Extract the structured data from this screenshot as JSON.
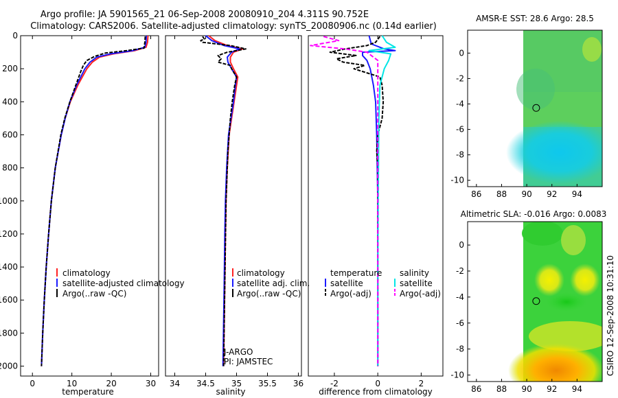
{
  "title": {
    "line1": "Argo profile: JA 5901565_21 06-Sep-2008 20080910_204 4.311S 90.752E",
    "line2": "Climatology: CARS2006. Satellite-adjusted climatology: synTS_20080906.nc (0.14d earlier)"
  },
  "credit": "CSIRO 12-Sep-2008 10:31:10",
  "colors": {
    "climatology": "#ff2020",
    "satellite": "#1a1aff",
    "argo": "#000000",
    "sal_satellite": "#00e5e5",
    "sal_argo": "#ff00ff"
  },
  "chart_data": [
    {
      "id": "temperature",
      "type": "line",
      "xlabel": "temperature",
      "ylabel": "",
      "xlim": [
        -3,
        32
      ],
      "ylim": [
        2060,
        0
      ],
      "xticks": [
        0,
        10,
        20,
        30
      ],
      "yticks": [
        0,
        200,
        400,
        600,
        800,
        1000,
        1200,
        1400,
        1600,
        1800,
        2000
      ],
      "legend": [
        "climatology",
        "satellite-adjusted climatology",
        "Argo(..raw -QC)"
      ],
      "series": [
        {
          "name": "climatology",
          "depth": [
            0,
            40,
            70,
            90,
            110,
            130,
            160,
            200,
            300,
            400,
            500,
            600,
            800,
            1000,
            1200,
            1400,
            1600,
            1800,
            2000
          ],
          "values": [
            29.3,
            29.2,
            28.8,
            26.0,
            20.5,
            17.0,
            15.2,
            13.8,
            11.5,
            9.6,
            8.3,
            7.3,
            5.8,
            4.8,
            4.1,
            3.5,
            3.0,
            2.6,
            2.3
          ]
        },
        {
          "name": "satellite-adjusted climatology",
          "depth": [
            0,
            40,
            70,
            90,
            110,
            130,
            160,
            200,
            300,
            400,
            500,
            600,
            800,
            1000,
            1200,
            1400,
            1600,
            1800,
            2000
          ],
          "values": [
            28.9,
            28.8,
            28.5,
            25.5,
            19.8,
            16.3,
            14.6,
            13.3,
            11.2,
            9.5,
            8.3,
            7.3,
            5.8,
            4.8,
            4.1,
            3.5,
            3.0,
            2.6,
            2.3
          ]
        },
        {
          "name": "Argo(..raw -QC)",
          "depth": [
            5,
            40,
            75,
            90,
            105,
            125,
            150,
            180,
            220,
            300,
            400,
            500,
            600,
            800,
            1000,
            1200,
            1400,
            1600,
            1800,
            2000
          ],
          "values": [
            28.6,
            28.5,
            28.3,
            24.0,
            18.5,
            15.8,
            13.8,
            12.9,
            12.2,
            11.0,
            9.5,
            8.2,
            7.2,
            5.8,
            4.8,
            4.1,
            3.5,
            3.0,
            2.6,
            2.3
          ]
        }
      ]
    },
    {
      "id": "salinity",
      "type": "line",
      "xlabel": "salinity",
      "xlim": [
        33.85,
        36.05
      ],
      "ylim": [
        2060,
        0
      ],
      "xticks": [
        34,
        34.5,
        35,
        35.5,
        36
      ],
      "legend": [
        "climatology",
        "satellite adj. clim.",
        "Argo(..raw -QC)"
      ],
      "annotation": [
        "J-ARGO",
        "PI: JAMSTEC"
      ],
      "series": [
        {
          "name": "climatology",
          "depth": [
            0,
            30,
            60,
            80,
            100,
            130,
            160,
            200,
            250,
            300,
            400,
            500,
            600,
            800,
            1000,
            1200,
            1500,
            2000
          ],
          "values": [
            34.55,
            34.65,
            34.85,
            35.1,
            34.95,
            34.9,
            34.9,
            34.95,
            35.02,
            35.0,
            34.96,
            34.92,
            34.88,
            34.85,
            34.83,
            34.82,
            34.81,
            34.79
          ]
        },
        {
          "name": "satellite adj. clim.",
          "depth": [
            0,
            30,
            60,
            80,
            100,
            130,
            160,
            200,
            250,
            300,
            400,
            500,
            600,
            800,
            1000,
            1200,
            1500,
            2000
          ],
          "values": [
            34.5,
            34.6,
            34.8,
            35.05,
            34.92,
            34.85,
            34.86,
            34.92,
            35.0,
            34.98,
            34.95,
            34.91,
            34.87,
            34.84,
            34.82,
            34.81,
            34.8,
            34.78
          ]
        },
        {
          "name": "Argo(..raw -QC)",
          "depth": [
            5,
            20,
            30,
            40,
            60,
            80,
            100,
            120,
            140,
            160,
            180,
            200,
            250,
            300,
            400,
            500,
            700,
            1000,
            1500,
            2000
          ],
          "values": [
            34.45,
            34.48,
            34.42,
            34.45,
            34.9,
            35.15,
            34.85,
            34.7,
            34.75,
            34.7,
            34.9,
            34.92,
            35.0,
            34.97,
            34.93,
            34.9,
            34.86,
            34.83,
            34.81,
            34.79
          ]
        }
      ]
    },
    {
      "id": "difference",
      "type": "line",
      "xlabel": "difference from climatology",
      "xlim": [
        -3.2,
        3.0
      ],
      "ylim": [
        2060,
        0
      ],
      "xticks": [
        -2,
        0,
        2
      ],
      "legend_left": {
        "title": "temperature",
        "items": [
          "satellite",
          "Argo(-adj)"
        ]
      },
      "legend_right": {
        "title": "salinity",
        "items": [
          "satellite",
          "Argo(-adj)"
        ]
      },
      "series": [
        {
          "name": "temperature satellite",
          "depth": [
            0,
            50,
            80,
            90,
            100,
            120,
            150,
            200,
            300,
            400,
            600,
            1000,
            1500,
            2000
          ],
          "values": [
            -0.4,
            -0.3,
            0.3,
            0.8,
            -0.7,
            -0.7,
            -0.5,
            -0.35,
            -0.2,
            -0.1,
            -0.05,
            0.0,
            0.0,
            0.0
          ]
        },
        {
          "name": "temperature Argo(-adj)",
          "depth": [
            5,
            40,
            60,
            80,
            100,
            120,
            140,
            160,
            180,
            200,
            250,
            300,
            400,
            500,
            600,
            700,
            800,
            900,
            1000,
            1200,
            1500,
            2000
          ],
          "values": [
            0.1,
            -0.1,
            -0.5,
            -1.5,
            -2.2,
            -1.0,
            -1.9,
            -1.6,
            -0.6,
            -1.1,
            0.1,
            0.2,
            0.25,
            0.2,
            0.0,
            -0.05,
            0.0,
            0.0,
            0.0,
            0.0,
            0.0,
            0.0
          ]
        },
        {
          "name": "salinity satellite",
          "depth": [
            0,
            40,
            70,
            90,
            110,
            150,
            200,
            300,
            500,
            1000,
            1500,
            2000
          ],
          "values": [
            0.2,
            0.4,
            0.8,
            -0.4,
            0.6,
            0.5,
            0.3,
            0.1,
            0.05,
            0.02,
            0.0,
            0.0
          ]
        },
        {
          "name": "salinity Argo(-adj)",
          "depth": [
            5,
            30,
            60,
            80,
            100,
            150,
            200,
            300,
            500,
            1000,
            2000
          ],
          "values": [
            -2.5,
            -1.8,
            -3.1,
            -1.5,
            -0.5,
            0.0,
            0.0,
            0.0,
            0.0,
            0.0,
            0.0
          ]
        }
      ]
    },
    {
      "id": "sst-map",
      "type": "heatmap",
      "title": "AMSR-E SST: 28.6 Argo: 28.5",
      "xlim": [
        85.3,
        96.0
      ],
      "ylim": [
        -10.5,
        1.8
      ],
      "xticks": [
        86,
        88,
        90,
        92,
        94
      ],
      "yticks": [
        0,
        -2,
        -4,
        -6,
        -8,
        -10
      ],
      "data_xrange": [
        90.0,
        96.0
      ],
      "marker": {
        "lon": 90.752,
        "lat": -4.311
      }
    },
    {
      "id": "sla-map",
      "type": "heatmap",
      "title": "Altimetric SLA: -0.016 Argo: 0.0083",
      "xlim": [
        85.3,
        96.0
      ],
      "ylim": [
        -10.5,
        1.8
      ],
      "xticks": [
        86,
        88,
        90,
        92,
        94
      ],
      "yticks": [
        0,
        -2,
        -4,
        -6,
        -8,
        -10
      ],
      "data_xrange": [
        90.0,
        96.0
      ],
      "marker": {
        "lon": 90.752,
        "lat": -4.311
      }
    }
  ]
}
